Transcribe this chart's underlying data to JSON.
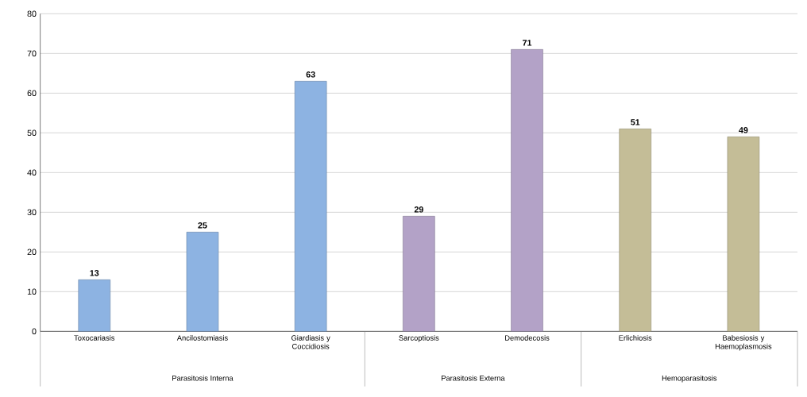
{
  "chart_data": {
    "type": "bar",
    "categories": [
      "Toxocariasis",
      "Ancilostomiasis",
      "Giardiasis y Coccidiosis",
      "Sarcoptiosis",
      "Demodecosis",
      "Erlichiosis",
      "Babesiosis y Haemoplasmosis"
    ],
    "values": [
      13,
      25,
      63,
      29,
      71,
      51,
      49
    ],
    "colors": [
      "#8db3e2",
      "#8db3e2",
      "#8db3e2",
      "#b3a2c7",
      "#b3a2c7",
      "#c4bd97",
      "#c4bd97"
    ],
    "data_labels": true,
    "ylim": [
      0,
      80
    ],
    "yticks": [
      0,
      10,
      20,
      30,
      40,
      50,
      60,
      70,
      80
    ],
    "grid": "y",
    "annotations": [
      "Parasitosis Interna",
      "Parasitosis Externa",
      "Hemoparasitosis"
    ]
  }
}
